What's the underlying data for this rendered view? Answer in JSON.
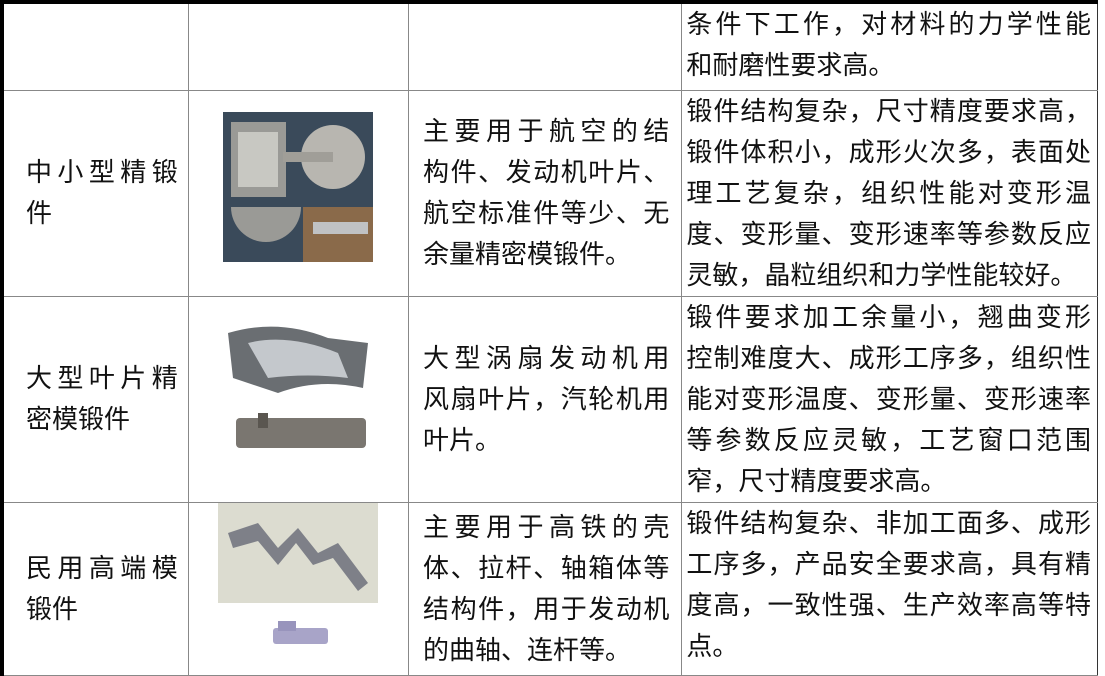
{
  "table": {
    "rows": [
      {
        "features": [
          "条件下工作，对材料的力学性能",
          "和耐磨性要求高。"
        ]
      },
      {
        "name": [
          "中小型精锻",
          "件"
        ],
        "use": [
          "主要用于航空的结",
          "构件、发动机叶片、",
          "航空标准件等少、无",
          "余量精密模锻件。"
        ],
        "features": [
          "锻件结构复杂，尺寸精度要求高，",
          "锻件体积小，成形火次多，表面处",
          "理工艺复杂，组织性能对变形温",
          "度、变形量、变形速率等参数反应",
          "灵敏，晶粒组织和力学性能较好。"
        ]
      },
      {
        "name": [
          "大型叶片精",
          "密模锻件"
        ],
        "use": [
          "大型涡扇发动机用",
          "风扇叶片，汽轮机用",
          "叶片。"
        ],
        "features": [
          "锻件要求加工余量小，翘曲变形",
          "控制难度大、成形工序多，组织性",
          "能对变形温度、变形量、变形速率",
          "等参数反应灵敏，工艺窗口范围",
          "窄，尺寸精度要求高。"
        ]
      },
      {
        "name": [
          "民用高端模",
          "锻件"
        ],
        "use": [
          "主要用于高铁的壳",
          "体、拉杆、轴箱体等",
          "结构件，用于发动机",
          "的曲轴、连杆等。"
        ],
        "features": [
          "锻件结构复杂、非加工面多、成形",
          "工序多，产品安全要求高，具有精",
          "度高，一致性强、生产效率高等特",
          "点。"
        ]
      }
    ]
  }
}
